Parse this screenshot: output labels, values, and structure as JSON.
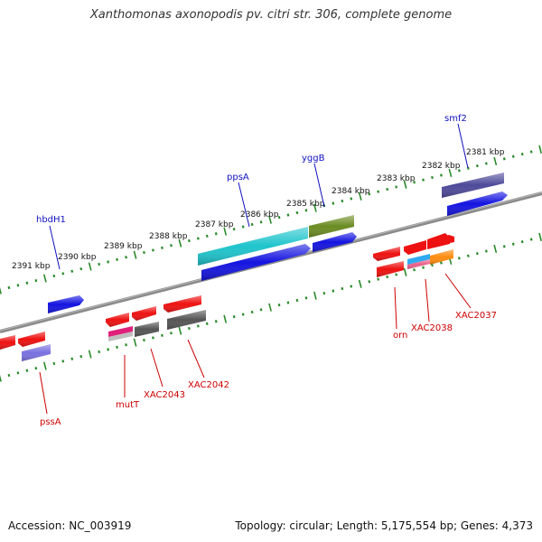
{
  "title": "Xanthomonas axonopodis pv. citri str. 306, complete genome",
  "footer": {
    "accession": "Accession: NC_003919",
    "topology": "Topology: circular; Length: 5,175,554 bp; Genes: 4,373"
  },
  "scale_labels": [
    "2381 kbp",
    "2382 kbp",
    "2383 kbp",
    "2384 kbp",
    "2385 kbp",
    "2386 kbp",
    "2387 kbp",
    "2388 kbp",
    "2389 kbp",
    "2390 kbp",
    "2391 kbp"
  ],
  "upper_labels": [
    "smf2",
    "yggB",
    "ppsA",
    "hbdH1"
  ],
  "lower_labels": [
    "XAC2037",
    "XAC2038",
    "orn",
    "XAC2042",
    "XAC2043",
    "mutT",
    "pssA"
  ],
  "colors": {
    "backbone": "#808080",
    "tick": "#2a8a2a",
    "label_blue": "#1010c0",
    "label_red": "#cc0000",
    "gene_blue": "#1414e0",
    "gene_red": "#ee1111",
    "gene_cyan": "#1fc4cc",
    "gene_olive": "#6b8c22",
    "gene_purple": "#4e4a9a",
    "gene_gray": "#555555",
    "gene_orange": "#ff8c10",
    "gene_pink": "#e0207a",
    "gene_lightblue": "#2eaaf0",
    "gene_lavender": "#7a70e0",
    "gene_lightgray": "#bfbfbf"
  }
}
